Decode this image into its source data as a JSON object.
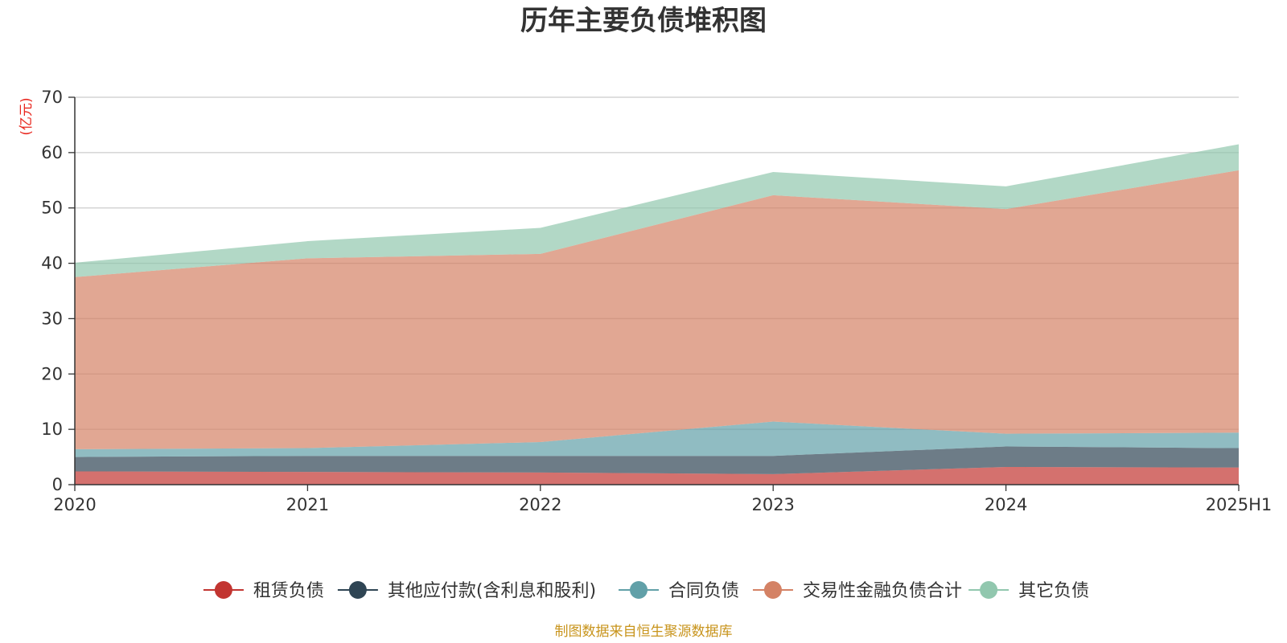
{
  "chart_data": {
    "type": "area",
    "stacked": true,
    "title": "历年主要负债堆积图",
    "ylabel": "(亿元)",
    "categories": [
      "2020",
      "2021",
      "2022",
      "2023",
      "2024",
      "2025H1"
    ],
    "ylim": [
      0,
      70
    ],
    "yticks": [
      0,
      10,
      20,
      30,
      40,
      50,
      60,
      70
    ],
    "grid": true,
    "legend_position": "bottom",
    "series": [
      {
        "name": "租赁负债",
        "color": "#c23531",
        "values": [
          2.4,
          2.3,
          2.2,
          1.9,
          3.2,
          3.1
        ]
      },
      {
        "name": "其他应付款(含利息和股利)",
        "color": "#2f4554",
        "values": [
          2.6,
          2.9,
          3.0,
          3.3,
          3.7,
          3.5
        ]
      },
      {
        "name": "合同负债",
        "color": "#61a0a8",
        "values": [
          1.4,
          1.4,
          2.5,
          6.2,
          2.3,
          2.8
        ]
      },
      {
        "name": "交易性金融负债合计",
        "color": "#d48265",
        "values": [
          31.1,
          34.3,
          34.0,
          40.9,
          40.6,
          47.4
        ]
      },
      {
        "name": "其它负债",
        "color": "#91c7ae",
        "values": [
          2.6,
          3.1,
          4.7,
          4.2,
          4.1,
          4.7
        ]
      }
    ]
  },
  "source_note": "制图数据来自恒生聚源数据库"
}
